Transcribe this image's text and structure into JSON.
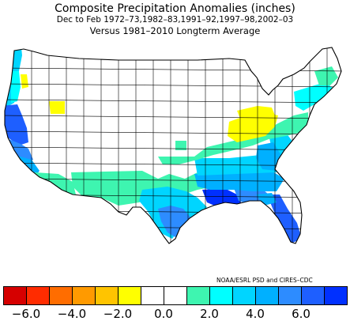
{
  "header": {
    "title": "Composite Precipitation Anomalies (inches)",
    "subtitle1": "Dec to Feb  1972–73,1982–83,1991–92,1997–98,2002–03",
    "subtitle2": "Versus 1981–2010 Longterm Average"
  },
  "credit": "NOAA/ESRL PSD and CIRES–CDC",
  "legend": {
    "colors": [
      "#d60000",
      "#ff2c00",
      "#ff6d00",
      "#ff9a00",
      "#ffc400",
      "#ffff00",
      "#ffffff",
      "#ffffff",
      "#3ef5b0",
      "#00ffff",
      "#00d5ff",
      "#00b0ff",
      "#2d8cff",
      "#1e5fff",
      "#0030ff"
    ],
    "ticks": [
      {
        "label": "−6.0",
        "value": -6.0
      },
      {
        "label": "−4.0",
        "value": -4.0
      },
      {
        "label": "−2.0",
        "value": -2.0
      },
      {
        "label": "0.0",
        "value": 0.0
      },
      {
        "label": "2.0",
        "value": 2.0
      },
      {
        "label": "4.0",
        "value": 4.0
      },
      {
        "label": "6.0",
        "value": 6.0
      }
    ],
    "range": [
      -7.0,
      8.0
    ],
    "bin_width": 1.0
  },
  "map": {
    "projection": "lambert-conic",
    "outline_color": "#000000",
    "regions": [
      {
        "name": "northwest-coast",
        "color": "#00d5ff"
      },
      {
        "name": "washington-west",
        "color": "#00ffff"
      },
      {
        "name": "oregon-inland",
        "color": "#ffff00"
      },
      {
        "name": "northern-california",
        "color": "#1e5fff"
      },
      {
        "name": "central-california",
        "color": "#2d8cff"
      },
      {
        "name": "southern-california",
        "color": "#00b0ff"
      },
      {
        "name": "nevada-pocket",
        "color": "#ffff00"
      },
      {
        "name": "arizona-new-mexico",
        "color": "#3ef5b0"
      },
      {
        "name": "texas-south",
        "color": "#00d5ff"
      },
      {
        "name": "gulf-coast",
        "color": "#0030ff"
      },
      {
        "name": "florida",
        "color": "#1e5fff"
      },
      {
        "name": "southeast",
        "color": "#00b0ff"
      },
      {
        "name": "carolinas",
        "color": "#00d5ff"
      },
      {
        "name": "mid-atlantic",
        "color": "#3ef5b0"
      },
      {
        "name": "ohio-valley",
        "color": "#ffff00"
      },
      {
        "name": "kansas-pocket",
        "color": "#3ef5b0"
      }
    ]
  }
}
